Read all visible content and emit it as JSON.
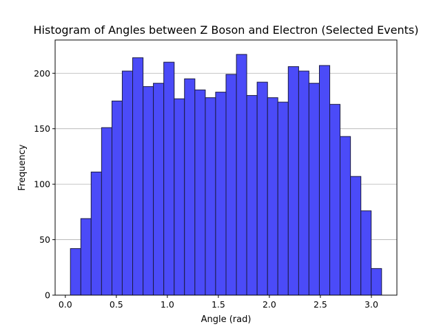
{
  "chart_data": {
    "type": "bar",
    "title": "Histogram of Angles between Z Boson and Electron (Selected Events)",
    "xlabel": "Angle (rad)",
    "ylabel": "Frequency",
    "xlim": [
      -0.1,
      3.25
    ],
    "ylim": [
      0,
      230
    ],
    "x_ticks": [
      0.0,
      0.5,
      1.0,
      1.5,
      2.0,
      2.5,
      3.0
    ],
    "x_tick_labels": [
      "0.0",
      "0.5",
      "1.0",
      "1.5",
      "2.0",
      "2.5",
      "3.0"
    ],
    "y_ticks": [
      0,
      50,
      100,
      150,
      200
    ],
    "y_tick_labels": [
      "0",
      "50",
      "100",
      "150",
      "200"
    ],
    "grid": "y",
    "bin_edges": [
      0.05,
      0.152,
      0.253,
      0.355,
      0.457,
      0.558,
      0.66,
      0.762,
      0.863,
      0.965,
      1.067,
      1.168,
      1.27,
      1.372,
      1.473,
      1.575,
      1.677,
      1.778,
      1.88,
      1.982,
      2.083,
      2.185,
      2.287,
      2.388,
      2.49,
      2.592,
      2.693,
      2.795,
      2.897,
      2.998,
      3.1
    ],
    "values": [
      42,
      69,
      111,
      151,
      175,
      202,
      214,
      188,
      191,
      210,
      177,
      195,
      185,
      178,
      183,
      199,
      217,
      180,
      192,
      178,
      174,
      206,
      202,
      191,
      207,
      172,
      143,
      107,
      76,
      24
    ],
    "bar_color": "#4b4bf8",
    "edge_color": "#1a1a40"
  }
}
